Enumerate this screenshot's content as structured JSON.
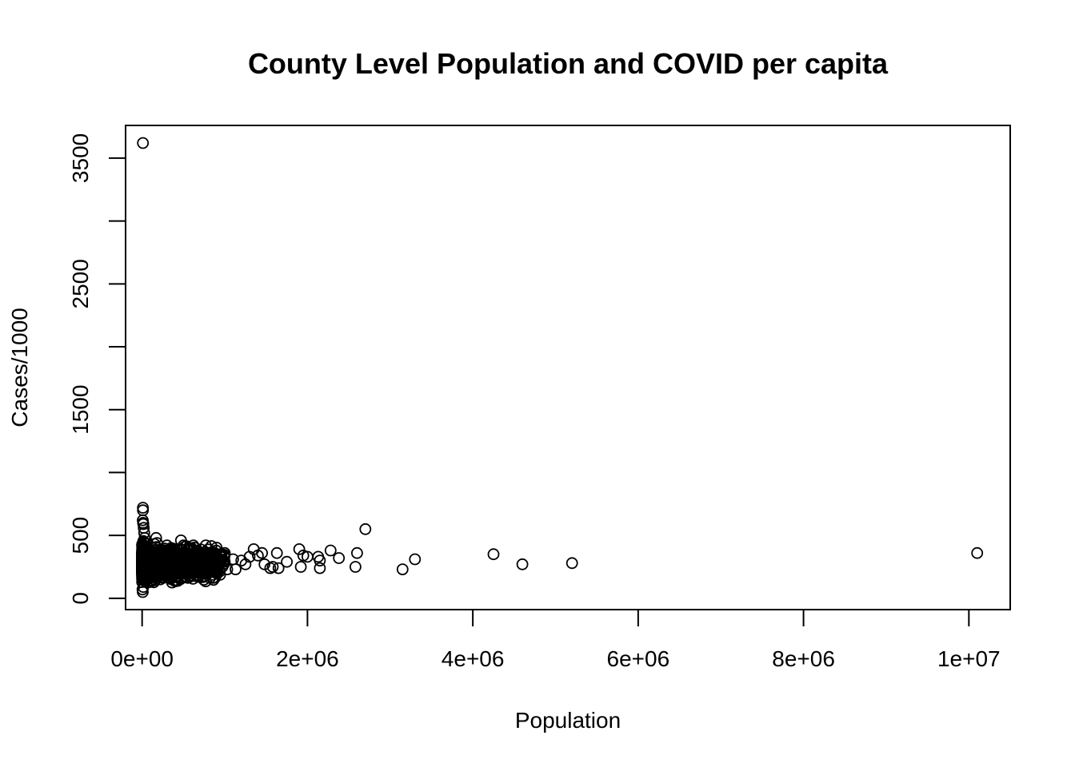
{
  "chart_data": {
    "type": "scatter",
    "title": "County Level Population and COVID per capita",
    "xlabel": "Population",
    "ylabel": "Cases/1000",
    "xlim": [
      -200000,
      10500000
    ],
    "ylim": [
      -90,
      3760
    ],
    "x_ticks": [
      0,
      2000000,
      4000000,
      6000000,
      8000000,
      10000000
    ],
    "x_tick_labels": [
      "0e+00",
      "2e+06",
      "4e+06",
      "6e+06",
      "8e+06",
      "1e+07"
    ],
    "y_ticks": [
      0,
      500,
      1000,
      1500,
      2000,
      2500,
      3000,
      3500
    ],
    "y_tick_labels": [
      "0",
      "500",
      "",
      "1500",
      "",
      "2500",
      "",
      "3500"
    ],
    "grid": false,
    "marker": "open-circle",
    "series": [
      {
        "points": [
          [
            10000,
            3620
          ],
          [
            10000,
            720
          ],
          [
            10000,
            700
          ],
          [
            8000,
            620
          ],
          [
            12000,
            600
          ],
          [
            15000,
            590
          ],
          [
            20000,
            560
          ],
          [
            25000,
            520
          ],
          [
            30000,
            480
          ],
          [
            5000,
            70
          ],
          [
            8000,
            50
          ],
          [
            15000,
            90
          ],
          [
            170000,
            480
          ],
          [
            180000,
            440
          ],
          [
            220000,
            150
          ],
          [
            300000,
            420
          ],
          [
            350000,
            400
          ],
          [
            470000,
            460
          ],
          [
            500000,
            420
          ],
          [
            560000,
            390
          ],
          [
            620000,
            420
          ],
          [
            650000,
            370
          ],
          [
            680000,
            170
          ],
          [
            700000,
            350
          ],
          [
            720000,
            300
          ],
          [
            780000,
            260
          ],
          [
            800000,
            200
          ],
          [
            850000,
            320
          ],
          [
            900000,
            280
          ],
          [
            950000,
            330
          ],
          [
            1000000,
            360
          ],
          [
            1030000,
            230
          ],
          [
            1100000,
            310
          ],
          [
            1130000,
            230
          ],
          [
            1200000,
            300
          ],
          [
            1250000,
            270
          ],
          [
            1300000,
            330
          ],
          [
            1350000,
            390
          ],
          [
            1400000,
            340
          ],
          [
            1450000,
            360
          ],
          [
            1480000,
            270
          ],
          [
            1550000,
            240
          ],
          [
            1580000,
            250
          ],
          [
            1630000,
            360
          ],
          [
            1650000,
            240
          ],
          [
            1750000,
            290
          ],
          [
            1900000,
            390
          ],
          [
            1920000,
            250
          ],
          [
            1950000,
            340
          ],
          [
            2000000,
            330
          ],
          [
            2130000,
            330
          ],
          [
            2150000,
            240
          ],
          [
            2150000,
            300
          ],
          [
            2280000,
            380
          ],
          [
            2380000,
            320
          ],
          [
            2580000,
            250
          ],
          [
            2600000,
            360
          ],
          [
            2700000,
            550
          ],
          [
            3150000,
            230
          ],
          [
            3300000,
            310
          ],
          [
            4250000,
            350
          ],
          [
            4600000,
            270
          ],
          [
            5200000,
            280
          ],
          [
            10100000,
            360
          ]
        ]
      }
    ]
  }
}
